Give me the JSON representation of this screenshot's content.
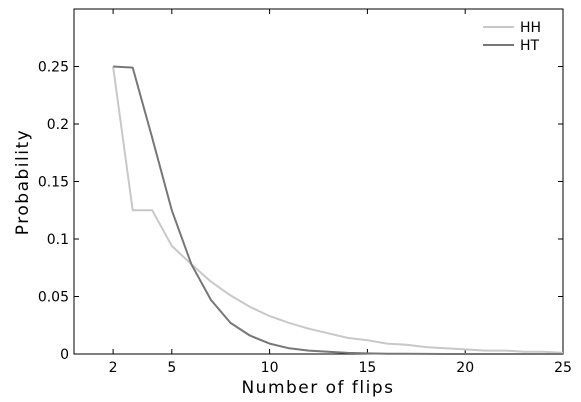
{
  "chart_data": {
    "type": "line",
    "title": "",
    "xlabel": "Number of flips",
    "ylabel": "Probability",
    "xlim": [
      0,
      25
    ],
    "ylim": [
      0,
      0.3
    ],
    "xticks": [
      2,
      5,
      10,
      15,
      20,
      25
    ],
    "yticks": [
      0,
      0.05,
      0.1,
      0.15,
      0.2,
      0.25
    ],
    "ytick_labels": [
      "0",
      "0.05",
      "0.1",
      "0.15",
      "0.2",
      "0.25"
    ],
    "grid": false,
    "legend_position": "top-right",
    "series": [
      {
        "name": "HH",
        "color": "#c8c8c8",
        "x": [
          2,
          3,
          4,
          5,
          6,
          7,
          8,
          9,
          10,
          11,
          12,
          13,
          14,
          15,
          16,
          17,
          18,
          19,
          20,
          21,
          22,
          23,
          24,
          25
        ],
        "values": [
          0.25,
          0.125,
          0.125,
          0.094,
          0.078,
          0.063,
          0.051,
          0.041,
          0.033,
          0.027,
          0.022,
          0.018,
          0.014,
          0.012,
          0.009,
          0.008,
          0.006,
          0.005,
          0.004,
          0.003,
          0.003,
          0.002,
          0.002,
          0.001
        ]
      },
      {
        "name": "HT",
        "color": "#777777",
        "x": [
          2,
          3,
          4,
          5,
          6,
          7,
          8,
          9,
          10,
          11,
          12,
          13,
          14,
          15,
          16,
          17,
          18,
          19,
          20,
          21,
          22,
          23,
          24,
          25
        ],
        "values": [
          0.25,
          0.249,
          0.188,
          0.125,
          0.078,
          0.047,
          0.027,
          0.016,
          0.009,
          0.005,
          0.003,
          0.002,
          0.001,
          0.0005,
          0.0003,
          0.0002,
          0.0001,
          0,
          0,
          0,
          0,
          0,
          0,
          0
        ]
      }
    ]
  }
}
